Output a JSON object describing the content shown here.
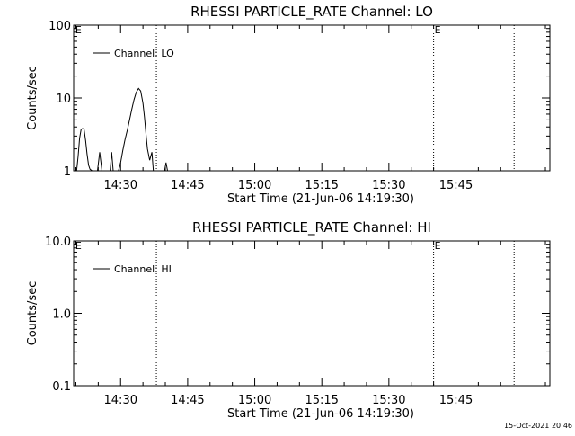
{
  "footer": {
    "timestamp": "15-Oct-2021 20:46"
  },
  "chart_data": [
    {
      "type": "line",
      "title": "RHESSI PARTICLE_RATE Channel: LO",
      "xlabel": "Start Time (21-Jun-06 14:19:30)",
      "ylabel": "Counts/sec",
      "yscale": "log",
      "ylim": [
        1,
        100
      ],
      "yticks": [
        {
          "value": 1,
          "label": "1"
        },
        {
          "value": 10,
          "label": "10"
        },
        {
          "value": 100,
          "label": "100"
        }
      ],
      "xlim": [
        "14:19:30",
        "16:06:00"
      ],
      "xticks": [
        "14:30",
        "14:45",
        "15:00",
        "15:15",
        "15:30",
        "15:45"
      ],
      "legend": {
        "position": "top-left",
        "entries": [
          "Channel: LO"
        ]
      },
      "event_marks": [
        {
          "time": "14:19:40",
          "label": "E",
          "line": false
        },
        {
          "time": "14:38:00",
          "label": "",
          "line": true
        },
        {
          "time": "15:40:00",
          "label": "E",
          "line": true
        },
        {
          "time": "15:58:00",
          "label": "",
          "line": true
        }
      ],
      "series": [
        {
          "name": "Channel: LO",
          "segments": [
            {
              "x": [
                "14:20:10",
                "14:20:30",
                "14:20:50",
                "14:21:10",
                "14:21:30",
                "14:21:50",
                "14:22:10",
                "14:22:30",
                "14:22:50",
                "14:23:10",
                "14:23:40"
              ],
              "y": [
                1.0,
                1.6,
                2.8,
                3.7,
                3.8,
                3.7,
                2.6,
                1.7,
                1.2,
                1.05,
                1.0
              ]
            },
            {
              "x": [
                "14:24:50",
                "14:25:20",
                "14:25:50"
              ],
              "y": [
                1.0,
                1.8,
                1.0
              ]
            },
            {
              "x": [
                "14:27:40",
                "14:28:00",
                "14:28:20"
              ],
              "y": [
                1.0,
                1.8,
                1.0
              ]
            },
            {
              "x": [
                "14:29:30",
                "14:30:00",
                "14:30:30",
                "14:31:00",
                "14:31:30",
                "14:32:00",
                "14:32:30",
                "14:33:00",
                "14:33:30",
                "14:34:00",
                "14:34:30",
                "14:35:00",
                "14:35:20",
                "14:35:40",
                "14:36:00",
                "14:36:30",
                "14:37:00",
                "14:37:20"
              ],
              "y": [
                1.0,
                1.3,
                1.9,
                2.7,
                3.6,
                5.0,
                7.0,
                9.5,
                12.0,
                13.5,
                12.5,
                8.5,
                5.5,
                3.2,
                2.0,
                1.4,
                1.8,
                1.0
              ]
            },
            {
              "x": [
                "14:39:50",
                "14:40:10",
                "14:40:30"
              ],
              "y": [
                1.0,
                1.3,
                1.0
              ]
            }
          ]
        }
      ]
    },
    {
      "type": "line",
      "title": "RHESSI PARTICLE_RATE Channel: HI",
      "xlabel": "Start Time (21-Jun-06 14:19:30)",
      "ylabel": "Counts/sec",
      "yscale": "log",
      "ylim": [
        0.1,
        10
      ],
      "yticks": [
        {
          "value": 0.1,
          "label": "0.1"
        },
        {
          "value": 1,
          "label": "1.0"
        },
        {
          "value": 10,
          "label": "10.0"
        }
      ],
      "xlim": [
        "14:19:30",
        "16:06:00"
      ],
      "xticks": [
        "14:30",
        "14:45",
        "15:00",
        "15:15",
        "15:30",
        "15:45"
      ],
      "legend": {
        "position": "top-left",
        "entries": [
          "Channel: HI"
        ]
      },
      "event_marks": [
        {
          "time": "14:19:40",
          "label": "E",
          "line": false
        },
        {
          "time": "14:38:00",
          "label": "",
          "line": true
        },
        {
          "time": "15:40:00",
          "label": "E",
          "line": true
        },
        {
          "time": "15:58:00",
          "label": "",
          "line": true
        }
      ],
      "series": [
        {
          "name": "Channel: HI",
          "segments": []
        }
      ]
    }
  ]
}
